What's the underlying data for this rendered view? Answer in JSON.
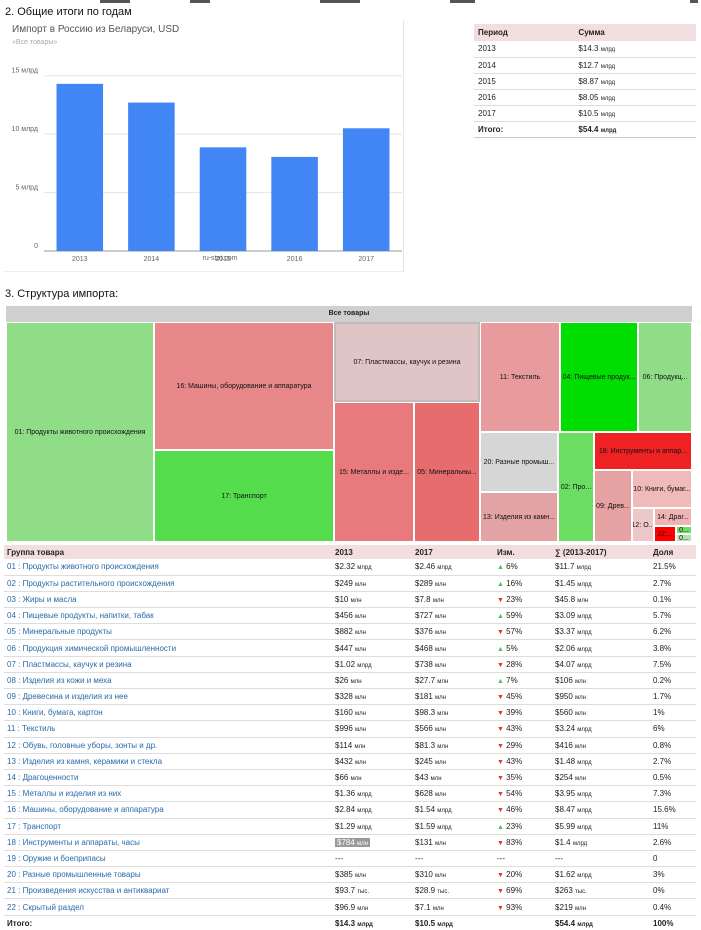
{
  "section2_title": "2. Общие итоги по годам",
  "section3_title": "3. Структура импорта:",
  "chart_data": {
    "type": "bar",
    "title": "Импорт в Россию из Беларуси, USD",
    "subtitle": "«Все товары»",
    "categories": [
      "2013",
      "2014",
      "2015",
      "2016",
      "2017"
    ],
    "values": [
      14.3,
      12.7,
      8.87,
      8.05,
      10.5
    ],
    "ylim": [
      0,
      16
    ],
    "yticks": [
      0,
      5,
      10,
      15
    ],
    "ytick_labels": [
      "0",
      "5 млрд",
      "10 млрд",
      "15 млрд"
    ],
    "bar_color": "#4285f4",
    "source": "ru-stat.com"
  },
  "summary": {
    "headers": [
      "Период",
      "Сумма"
    ],
    "rows": [
      {
        "period": "2013",
        "num": "$14.3",
        "unit": "млрд"
      },
      {
        "period": "2014",
        "num": "$12.7",
        "unit": "млрд"
      },
      {
        "period": "2015",
        "num": "$8.87",
        "unit": "млрд"
      },
      {
        "period": "2016",
        "num": "$8.05",
        "unit": "млрд"
      },
      {
        "period": "2017",
        "num": "$10.5",
        "unit": "млрд"
      }
    ],
    "total": {
      "label": "Итого:",
      "num": "$54.4",
      "unit": "млрд"
    }
  },
  "treemap": {
    "header": "Все товары",
    "cells": [
      {
        "label": "01: Продукты животного происхождения",
        "color": "#8fdd86"
      },
      {
        "label": "16: Машины, оборудование и аппаратура",
        "color": "#e8888a"
      },
      {
        "label": "17: Транспорт",
        "color": "#55dd4e"
      },
      {
        "label": "07: Пластмассы, каучук и резина",
        "color": "#e0c5c7"
      },
      {
        "label": "15: Металлы и изде...",
        "color": "#e87a7b"
      },
      {
        "label": "05: Минеральны...",
        "color": "#e76c6d"
      },
      {
        "label": "11: Текстиль",
        "color": "#e89b9c"
      },
      {
        "label": "04: Пищевые продук...",
        "color": "#00dd00"
      },
      {
        "label": "06: Продукц...",
        "color": "#8fdd86"
      },
      {
        "label": "20: Разные промыш...",
        "color": "#d6d6d6"
      },
      {
        "label": "13: Изделия из камн...",
        "color": "#e3a2a3"
      },
      {
        "label": "02: Про...",
        "color": "#6bdd62"
      },
      {
        "label": "18: Инструменты и аппар...",
        "color": "#ee2222"
      },
      {
        "label": "09: Древ...",
        "color": "#e6a1a2"
      },
      {
        "label": "10: Книги, бумаг...",
        "color": "#f0b9ba"
      },
      {
        "label": "12: О...",
        "color": "#ecc8c9"
      },
      {
        "label": "14: Драг...",
        "color": "#f0b4b5"
      },
      {
        "label": "22:...",
        "color": "#ff0000"
      },
      {
        "label": "0...",
        "color": "#6bdd62"
      },
      {
        "label": "0...",
        "color": "#b7e0b3"
      }
    ]
  },
  "groups": {
    "headers": [
      "Группа товара",
      "2013",
      "2017",
      "Изм.",
      "∑ (2013-2017)",
      "Доля"
    ],
    "rows": [
      {
        "name": "01 : Продукты животного происхождения",
        "v2013": "$2.32",
        "u2013": "млрд",
        "v2017": "$2.46",
        "u2017": "млрд",
        "dir": "up",
        "chg": "6%",
        "sum": "$11.7",
        "usum": "млрд",
        "share": "21.5%"
      },
      {
        "name": "02 : Продукты растительного происхождения",
        "v2013": "$249",
        "u2013": "млн",
        "v2017": "$289",
        "u2017": "млн",
        "dir": "up",
        "chg": "16%",
        "sum": "$1.45",
        "usum": "млрд",
        "share": "2.7%"
      },
      {
        "name": "03 : Жиры и масла",
        "v2013": "$10",
        "u2013": "млн",
        "v2017": "$7.8",
        "u2017": "млн",
        "dir": "down",
        "chg": "23%",
        "sum": "$45.8",
        "usum": "млн",
        "share": "0.1%"
      },
      {
        "name": "04 : Пищевые продукты, напитки, табак",
        "v2013": "$456",
        "u2013": "млн",
        "v2017": "$727",
        "u2017": "млн",
        "dir": "up",
        "chg": "59%",
        "sum": "$3.09",
        "usum": "млрд",
        "share": "5.7%"
      },
      {
        "name": "05 : Минеральные продукты",
        "v2013": "$882",
        "u2013": "млн",
        "v2017": "$376",
        "u2017": "млн",
        "dir": "down",
        "chg": "57%",
        "sum": "$3.37",
        "usum": "млрд",
        "share": "6.2%"
      },
      {
        "name": "06 : Продукция химической промышленности",
        "v2013": "$447",
        "u2013": "млн",
        "v2017": "$468",
        "u2017": "млн",
        "dir": "up",
        "chg": "5%",
        "sum": "$2.06",
        "usum": "млрд",
        "share": "3.8%"
      },
      {
        "name": "07 : Пластмассы, каучук и резина",
        "v2013": "$1.02",
        "u2013": "млрд",
        "v2017": "$738",
        "u2017": "млн",
        "dir": "down",
        "chg": "28%",
        "sum": "$4.07",
        "usum": "млрд",
        "share": "7.5%"
      },
      {
        "name": "08 : Изделия из кожи и меха",
        "v2013": "$26",
        "u2013": "млн",
        "v2017": "$27.7",
        "u2017": "млн",
        "dir": "up",
        "chg": "7%",
        "sum": "$106",
        "usum": "млн",
        "share": "0.2%"
      },
      {
        "name": "09 : Древесина и изделия из нее",
        "v2013": "$328",
        "u2013": "млн",
        "v2017": "$181",
        "u2017": "млн",
        "dir": "down",
        "chg": "45%",
        "sum": "$950",
        "usum": "млн",
        "share": "1.7%"
      },
      {
        "name": "10 : Книги, бумага, картон",
        "v2013": "$160",
        "u2013": "млн",
        "v2017": "$98.3",
        "u2017": "млн",
        "dir": "down",
        "chg": "39%",
        "sum": "$560",
        "usum": "млн",
        "share": "1%"
      },
      {
        "name": "11 : Текстиль",
        "v2013": "$996",
        "u2013": "млн",
        "v2017": "$566",
        "u2017": "млн",
        "dir": "down",
        "chg": "43%",
        "sum": "$3.24",
        "usum": "млрд",
        "share": "6%"
      },
      {
        "name": "12 : Обувь, головные уборы, зонты и др.",
        "v2013": "$114",
        "u2013": "млн",
        "v2017": "$81.3",
        "u2017": "млн",
        "dir": "down",
        "chg": "29%",
        "sum": "$416",
        "usum": "млн",
        "share": "0.8%"
      },
      {
        "name": "13 : Изделия из камня, керамики и стекла",
        "v2013": "$432",
        "u2013": "млн",
        "v2017": "$245",
        "u2017": "млн",
        "dir": "down",
        "chg": "43%",
        "sum": "$1.48",
        "usum": "млрд",
        "share": "2.7%"
      },
      {
        "name": "14 : Драгоценности",
        "v2013": "$66",
        "u2013": "млн",
        "v2017": "$43",
        "u2017": "млн",
        "dir": "down",
        "chg": "35%",
        "sum": "$254",
        "usum": "млн",
        "share": "0.5%"
      },
      {
        "name": "15 : Металлы и изделия из них",
        "v2013": "$1.36",
        "u2013": "млрд",
        "v2017": "$628",
        "u2017": "млн",
        "dir": "down",
        "chg": "54%",
        "sum": "$3.95",
        "usum": "млрд",
        "share": "7.3%"
      },
      {
        "name": "16 : Машины, оборудование и аппаратура",
        "v2013": "$2.84",
        "u2013": "млрд",
        "v2017": "$1.54",
        "u2017": "млрд",
        "dir": "down",
        "chg": "46%",
        "sum": "$8.47",
        "usum": "млрд",
        "share": "15.6%"
      },
      {
        "name": "17 : Транспорт",
        "v2013": "$1.29",
        "u2013": "млрд",
        "v2017": "$1.59",
        "u2017": "млрд",
        "dir": "up",
        "chg": "23%",
        "sum": "$5.99",
        "usum": "млрд",
        "share": "11%"
      },
      {
        "name": "18 : Инструменты и аппараты, часы",
        "v2013": "$784",
        "u2013": "млн",
        "v2017": "$131",
        "u2017": "млн",
        "dir": "down",
        "chg": "83%",
        "sum": "$1.4",
        "usum": "млрд",
        "share": "2.6%",
        "hl": true
      },
      {
        "name": "19 : Оружие и боеприпасы",
        "v2013": "---",
        "u2013": "",
        "v2017": "---",
        "u2017": "",
        "dir": "",
        "chg": "---",
        "sum": "---",
        "usum": "",
        "share": "0"
      },
      {
        "name": "20 : Разные промышленные товары",
        "v2013": "$385",
        "u2013": "млн",
        "v2017": "$310",
        "u2017": "млн",
        "dir": "down",
        "chg": "20%",
        "sum": "$1.62",
        "usum": "млрд",
        "share": "3%"
      },
      {
        "name": "21 : Произведения искусства и антиквариат",
        "v2013": "$93.7",
        "u2013": "тыс.",
        "v2017": "$28.9",
        "u2017": "тыс.",
        "dir": "down",
        "chg": "69%",
        "sum": "$263",
        "usum": "тыс.",
        "share": "0%"
      },
      {
        "name": "22 : Скрытый раздел",
        "v2013": "$96.9",
        "u2013": "млн",
        "v2017": "$7.1",
        "u2017": "млн",
        "dir": "down",
        "chg": "93%",
        "sum": "$219",
        "usum": "млн",
        "share": "0.4%"
      }
    ],
    "total": {
      "label": "Итого:",
      "v2013": "$14.3",
      "u2013": "млрд",
      "v2017": "$10.5",
      "u2017": "млрд",
      "sum": "$54.4",
      "usum": "млрд",
      "share": "100%"
    }
  }
}
